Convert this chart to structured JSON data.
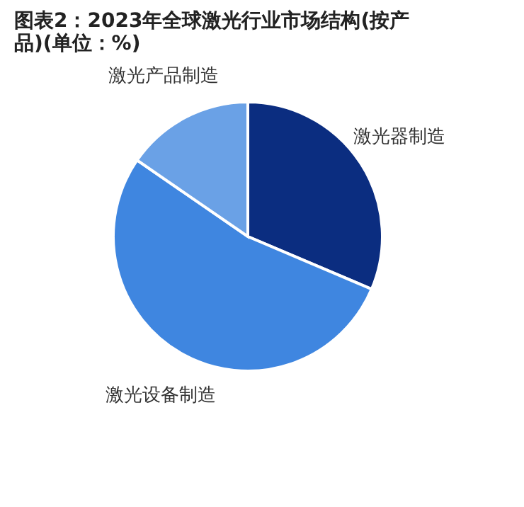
{
  "chart_data": {
    "type": "pie",
    "title": "图表2：2023年全球激光行业市场结构(按产品)(单位：%)",
    "categories": [
      "激光器制造",
      "激光设备制造",
      "激光产品制造"
    ],
    "values": [
      31.4,
      53.2,
      15.4
    ],
    "colors": [
      "#0b2d80",
      "#3f86e0",
      "#6aa1e6"
    ],
    "legend": false
  }
}
